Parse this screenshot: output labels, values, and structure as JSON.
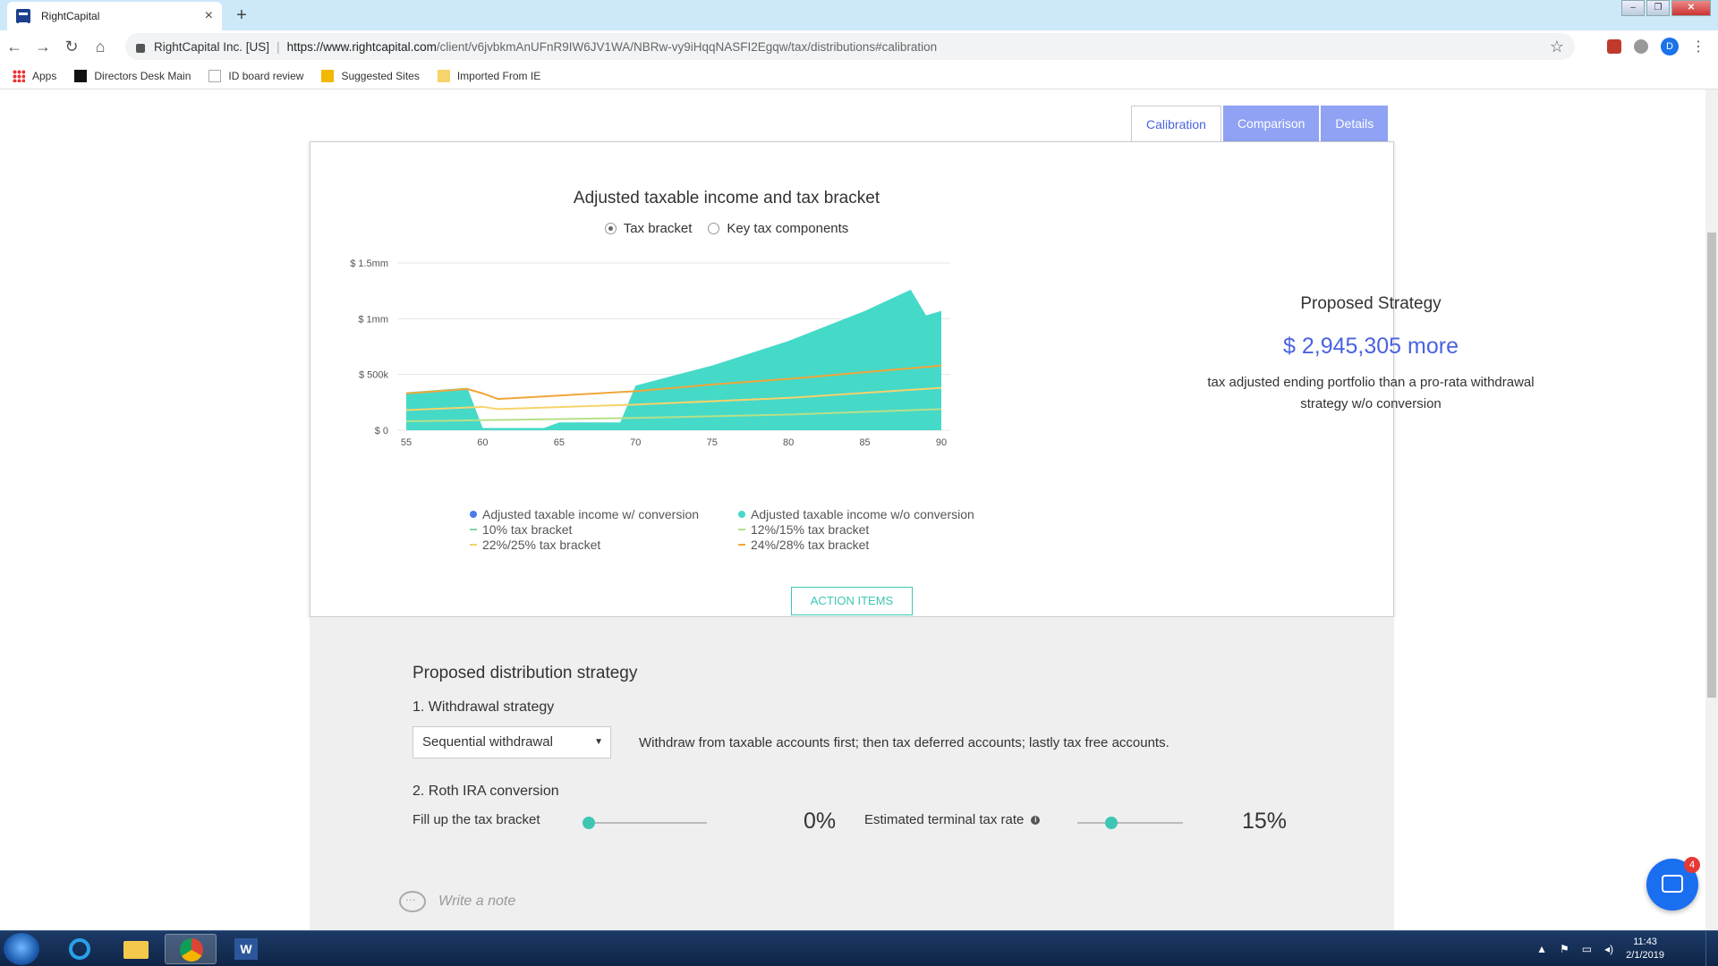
{
  "browser": {
    "tab_title": "RightCapital",
    "tab_close": "×",
    "new_tab": "+",
    "site_identity": "RightCapital Inc. [US]",
    "url_domain": "https://www.rightcapital.com",
    "url_path": "/client/v6jvbkmAnUFnR9IW6JV1WA/NBRw-vy9iHqqNASFI2Egqw/tax/distributions#calibration",
    "profile_initial": "D",
    "bookmarks": [
      {
        "label": "Apps"
      },
      {
        "label": "Directors Desk Main"
      },
      {
        "label": "ID board review"
      },
      {
        "label": "Suggested Sites"
      },
      {
        "label": "Imported From IE"
      }
    ]
  },
  "view_tabs": [
    {
      "label": "Calibration",
      "active": true
    },
    {
      "label": "Comparison",
      "active": false
    },
    {
      "label": "Details",
      "active": false
    }
  ],
  "chart_section": {
    "radios": [
      {
        "label": "Tax bracket",
        "selected": true
      },
      {
        "label": "Key tax components",
        "selected": false
      }
    ],
    "action_items_label": "ACTION ITEMS"
  },
  "chart_data": {
    "type": "area",
    "title": "Adjusted taxable income and tax bracket",
    "xlabel": "",
    "ylabel": "",
    "x_ticks": [
      55,
      60,
      65,
      70,
      75,
      80,
      85,
      90
    ],
    "y_ticks": [
      "$ 0",
      "$ 500k",
      "$ 1mm",
      "$ 1.5mm"
    ],
    "y_tick_values": [
      0,
      500000,
      1000000,
      1500000
    ],
    "xlim": [
      55,
      90
    ],
    "ylim": [
      0,
      1500000
    ],
    "grid": true,
    "legend_position": "bottom",
    "colors": {
      "with_conversion": "#4a7be8",
      "without_conversion": "#45d9c8",
      "bracket_10": "#7ad8a8",
      "bracket_12_15": "#b5e08a",
      "bracket_22_25": "#f6d36b",
      "bracket_24_28": "#f0a63a"
    },
    "legend": [
      {
        "label": "Adjusted taxable income w/ conversion",
        "color": "#4a7be8",
        "marker": "dot"
      },
      {
        "label": "Adjusted taxable income w/o conversion",
        "color": "#45d9c8",
        "marker": "dot"
      },
      {
        "label": "10% tax bracket",
        "color": "#7ad8a8",
        "marker": "line"
      },
      {
        "label": "12%/15% tax bracket",
        "color": "#b5e08a",
        "marker": "line"
      },
      {
        "label": "22%/25% tax bracket",
        "color": "#f6d36b",
        "marker": "line"
      },
      {
        "label": "24%/28% tax bracket",
        "color": "#f0a63a",
        "marker": "line"
      }
    ],
    "series": [
      {
        "name": "Adjusted taxable income w/o conversion",
        "kind": "area",
        "x": [
          55,
          58,
          59,
          60,
          64,
          65,
          69,
          70,
          75,
          80,
          85,
          88,
          89,
          90
        ],
        "values": [
          340000,
          370000,
          380000,
          20000,
          20000,
          70000,
          70000,
          400000,
          580000,
          800000,
          1070000,
          1260000,
          1030000,
          1070000
        ]
      },
      {
        "name": "24%/28% tax bracket",
        "kind": "line",
        "x": [
          55,
          59,
          60,
          61,
          70,
          75,
          80,
          85,
          90
        ],
        "values": [
          330000,
          370000,
          330000,
          280000,
          350000,
          410000,
          460000,
          520000,
          580000
        ]
      },
      {
        "name": "22%/25% tax bracket",
        "kind": "line",
        "x": [
          55,
          60,
          61,
          70,
          80,
          90
        ],
        "values": [
          180000,
          210000,
          190000,
          230000,
          290000,
          380000
        ]
      },
      {
        "name": "12%/15% tax bracket",
        "kind": "line",
        "x": [
          55,
          60,
          70,
          80,
          90
        ],
        "values": [
          80000,
          90000,
          110000,
          140000,
          190000
        ]
      }
    ]
  },
  "strategy": {
    "title": "Proposed Strategy",
    "value": "$ 2,945,305 more",
    "description": "tax adjusted ending portfolio than a pro-rata withdrawal strategy w/o conversion"
  },
  "distribution": {
    "title": "Proposed distribution strategy",
    "step1_label": "1. Withdrawal strategy",
    "withdrawal_selected": "Sequential withdrawal",
    "withdrawal_description": "Withdraw from taxable accounts first; then tax deferred accounts; lastly tax free accounts.",
    "step2_label": "2. Roth IRA conversion",
    "fill_label": "Fill up the tax bracket",
    "fill_value": "0%",
    "fill_fraction": 0,
    "terminal_label": "Estimated terminal tax rate",
    "terminal_value": "15%",
    "terminal_fraction": 0.32,
    "note_placeholder": "Write a note"
  },
  "chat": {
    "badge_count": "4"
  },
  "taskbar": {
    "clock_time": "11:43",
    "clock_date": "2/1/2019",
    "word_glyph": "W"
  }
}
